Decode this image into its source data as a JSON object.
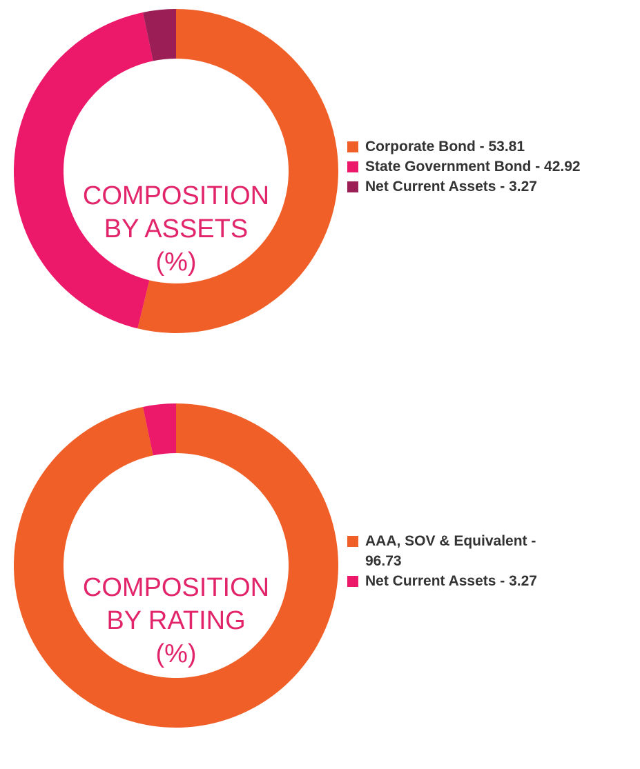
{
  "chart_data": [
    {
      "type": "pie",
      "center_title": [
        "COMPOSITION",
        "BY ASSETS",
        "(%)"
      ],
      "slices": [
        {
          "label": "Corporate Bond - 53.81",
          "value": 53.81,
          "color": "#f15f28"
        },
        {
          "label": "State Government Bond - 42.92",
          "value": 42.92,
          "color": "#ec1869"
        },
        {
          "label": "Net Current Assets - 3.27",
          "value": 3.27,
          "color": "#9b1e57"
        }
      ],
      "legend_placement": "right"
    },
    {
      "type": "pie",
      "center_title": [
        "COMPOSITION",
        "BY RATING",
        "(%)"
      ],
      "slices": [
        {
          "label": "AAA, SOV & Equivalent - 96.73",
          "value": 96.73,
          "color": "#f15f28"
        },
        {
          "label": "Net Current Assets - 3.27",
          "value": 3.27,
          "color": "#ec1869"
        }
      ],
      "legend_placement": "right"
    }
  ]
}
